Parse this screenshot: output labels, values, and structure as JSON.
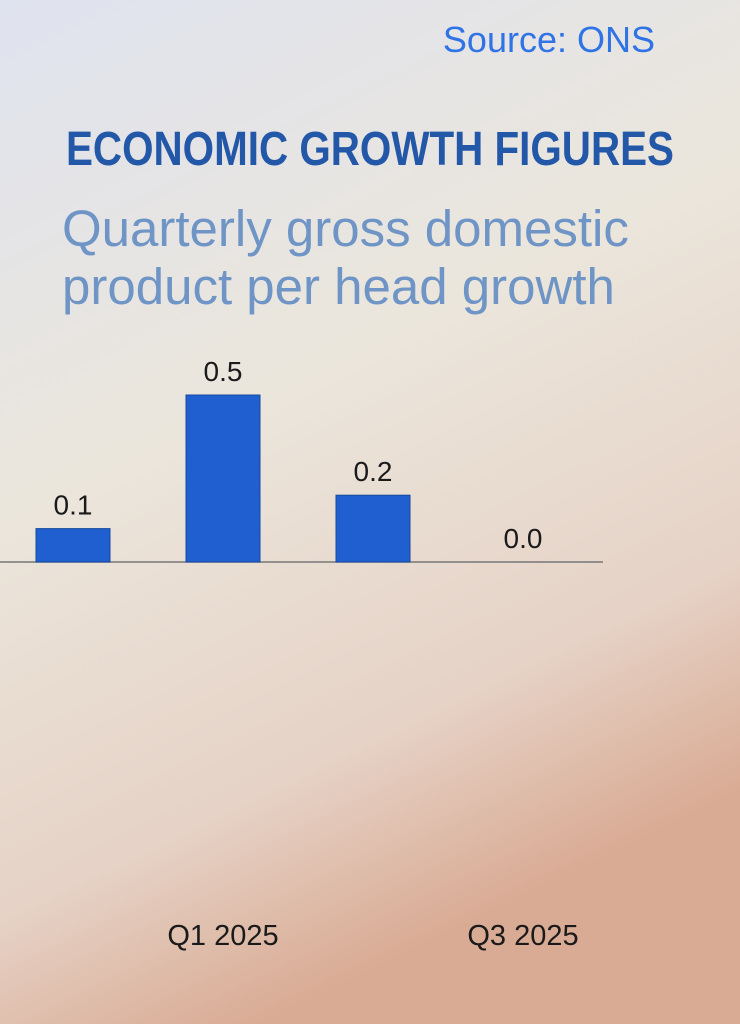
{
  "chart_data": {
    "type": "bar",
    "source": "Source: ONS",
    "title": "ECONOMIC GROWTH FIGURES",
    "subtitle": [
      "Quarterly gross domestic",
      "product per head growth"
    ],
    "categories": [
      null,
      "Q1 2025",
      null,
      "Q3 2025"
    ],
    "values": [
      0.1,
      0.5,
      0.2,
      0.0
    ],
    "value_labels": [
      "0.1",
      "0.5",
      "0.2",
      "0.0"
    ],
    "color": "#1f5fcf"
  }
}
